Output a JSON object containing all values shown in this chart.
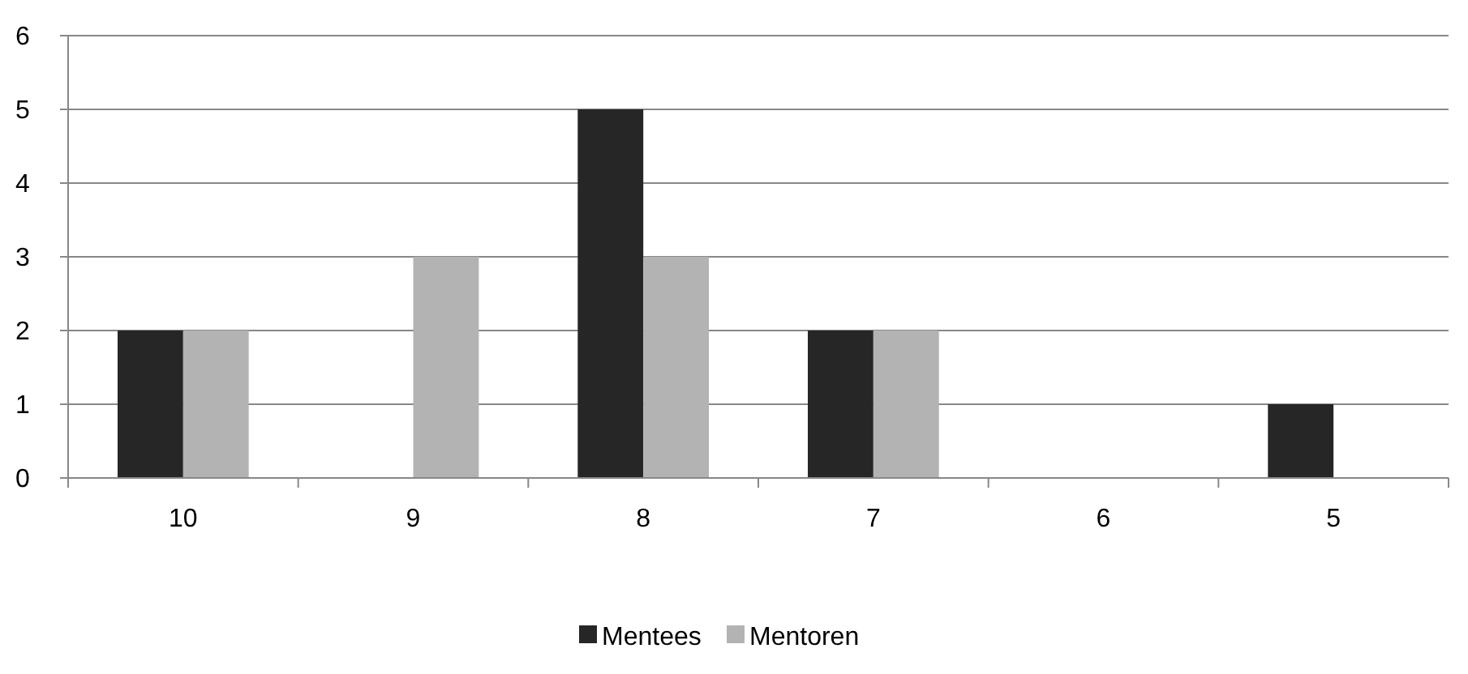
{
  "chart_data": {
    "type": "bar",
    "categories": [
      "10",
      "9",
      "8",
      "7",
      "6",
      "5"
    ],
    "series": [
      {
        "name": "Mentees",
        "color": "#262626",
        "values": [
          2,
          0,
          5,
          2,
          0,
          1
        ]
      },
      {
        "name": "Mentoren",
        "color": "#b3b3b3",
        "values": [
          2,
          3,
          3,
          2,
          0,
          0
        ]
      }
    ],
    "ylim": [
      0,
      6
    ],
    "yticks": [
      0,
      1,
      2,
      3,
      4,
      5,
      6
    ],
    "grid": "y",
    "legend": "bottom"
  }
}
